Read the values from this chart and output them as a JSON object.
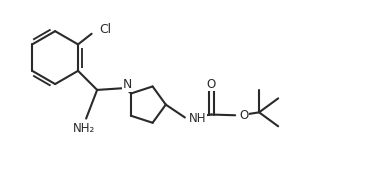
{
  "bg_color": "#ffffff",
  "line_color": "#2a2a2a",
  "line_width": 1.5,
  "font_size": 8.5,
  "fig_width": 3.71,
  "fig_height": 1.85,
  "xlim": [
    0,
    10.0
  ],
  "ylim": [
    0,
    5.0
  ]
}
